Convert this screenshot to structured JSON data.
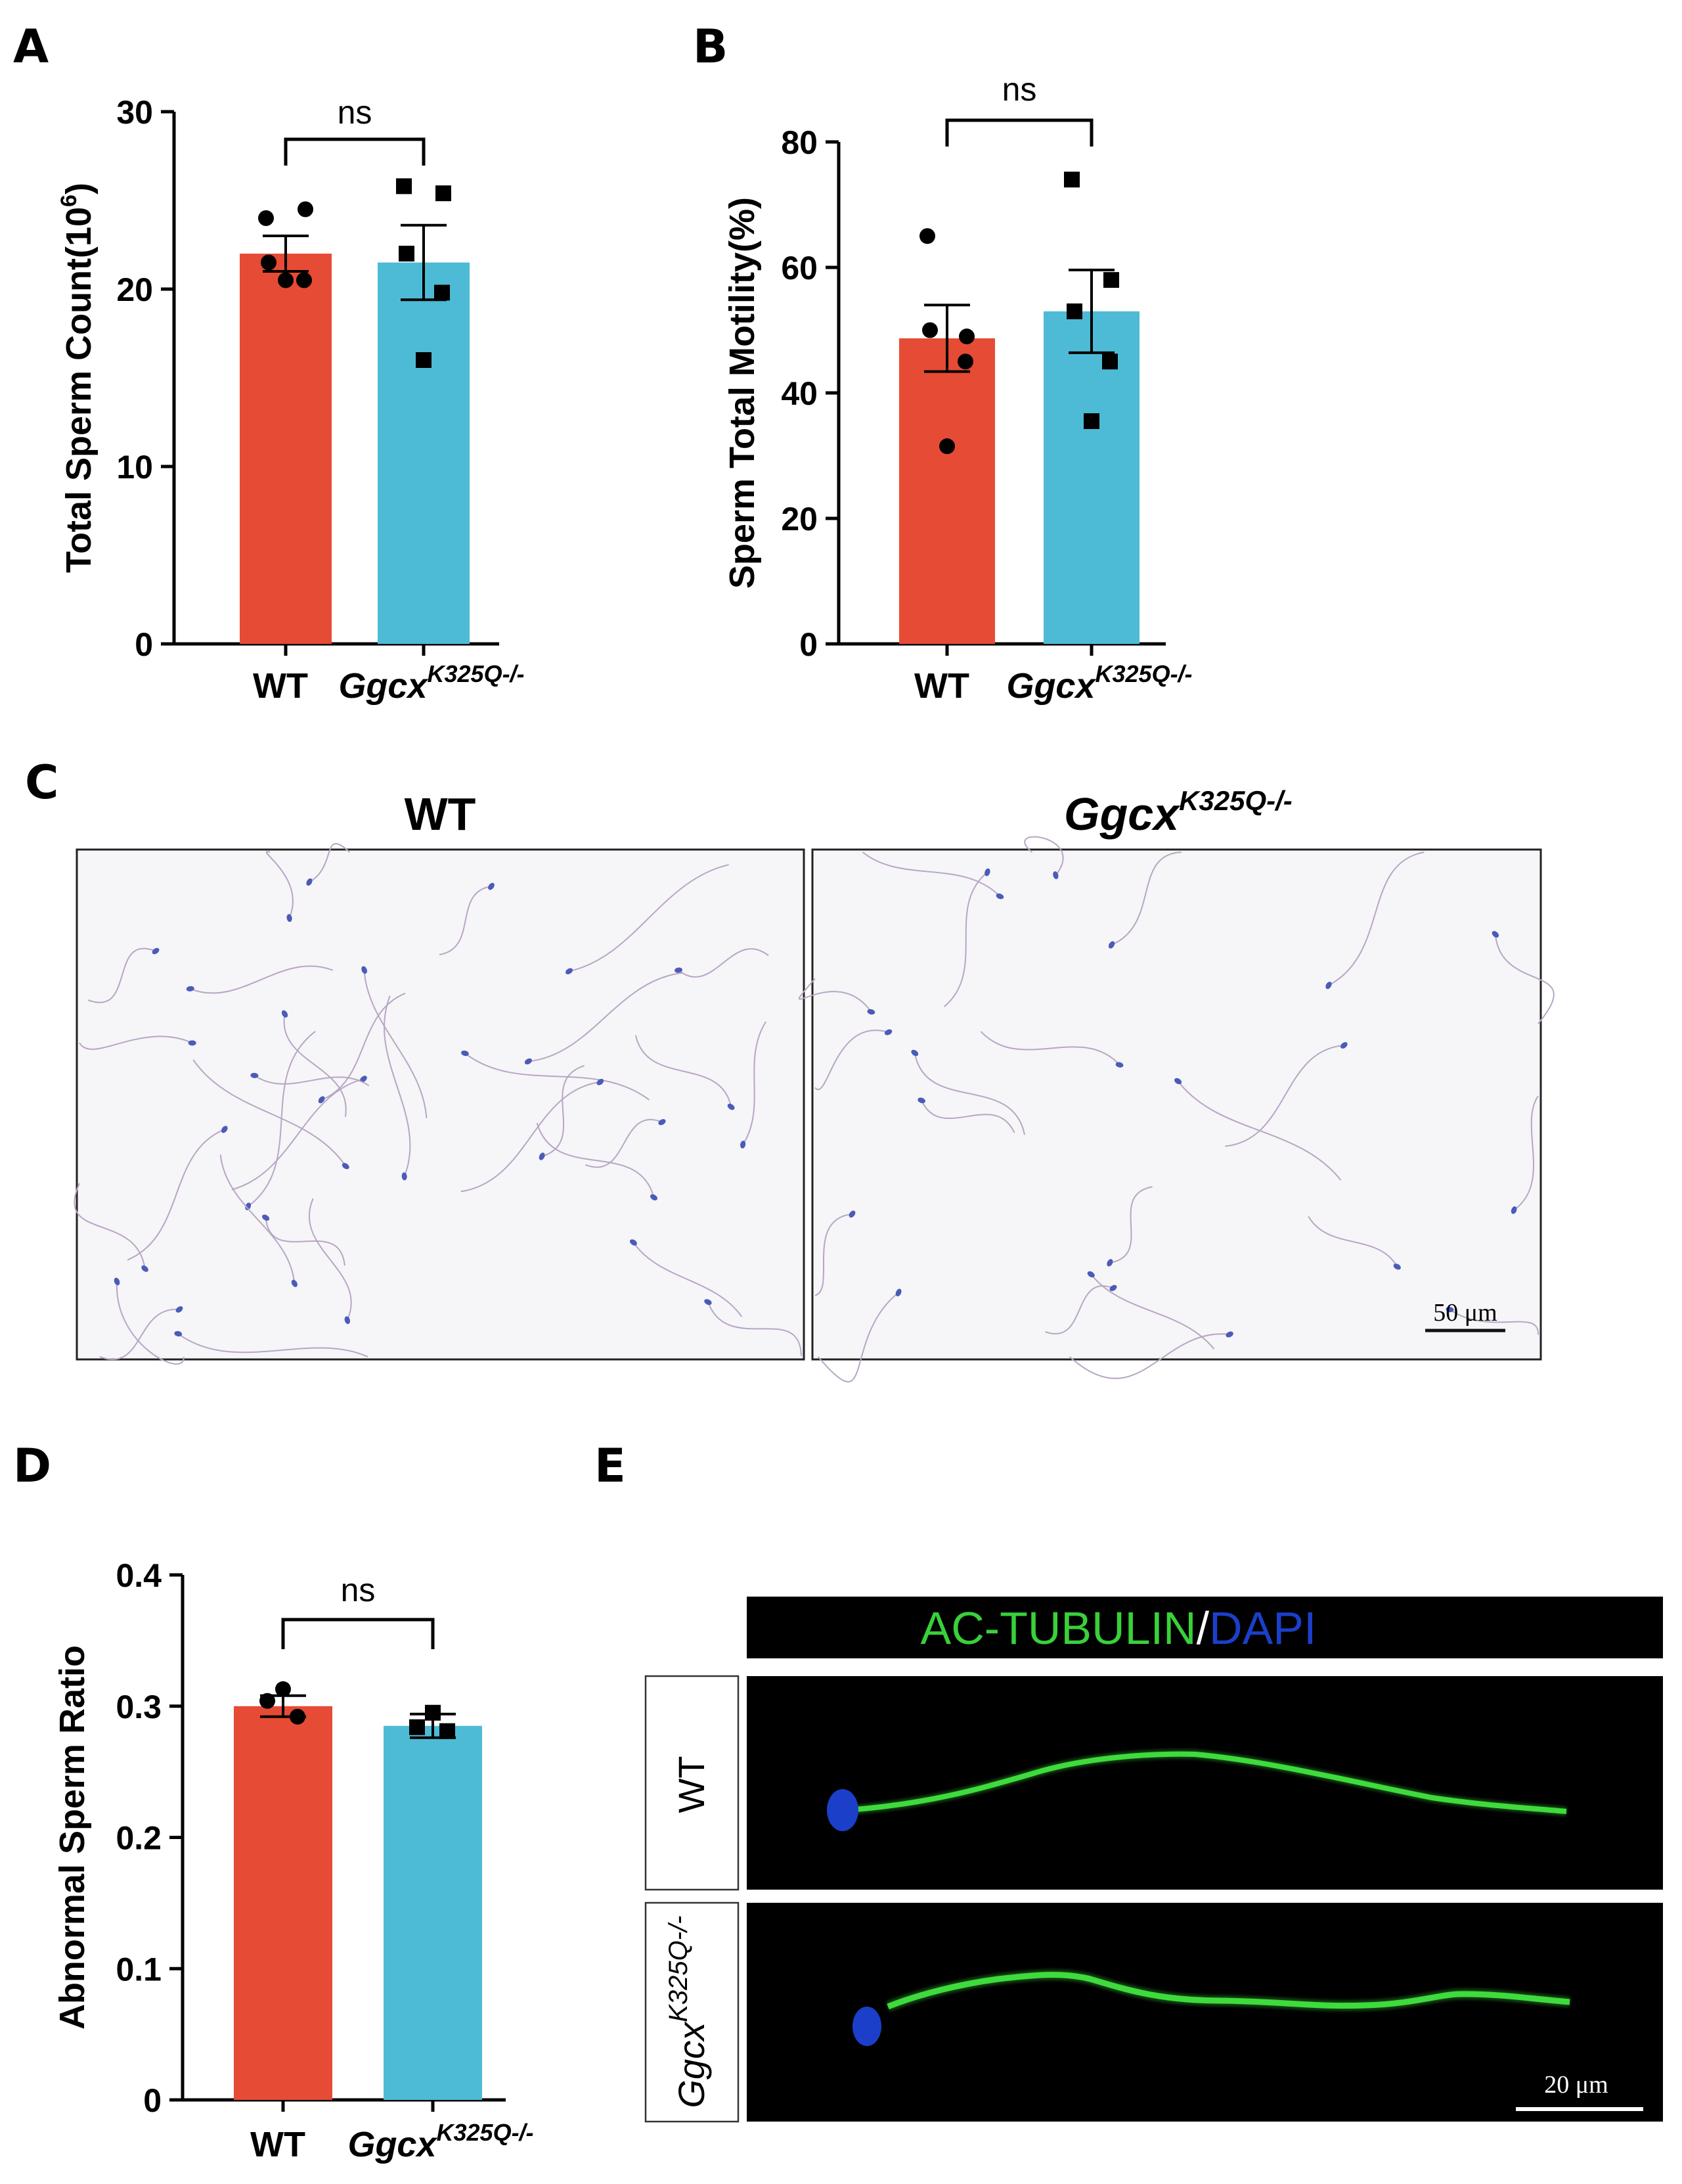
{
  "panel_letters": [
    "A",
    "B",
    "C",
    "D",
    "E"
  ],
  "colors": {
    "wt": "#E64B35",
    "mut": "#4DBBD5",
    "green": "#39D03A",
    "blue": "#1B3FC8",
    "micro_bg": "#F6F5F8"
  },
  "chart_data": [
    {
      "type": "bar",
      "panel": "A",
      "categories": [
        "WT",
        "Ggcx"
      ],
      "category_superscripts": [
        "",
        "K325Q-/-"
      ],
      "values": [
        22.0,
        21.5
      ],
      "sem": [
        1.0,
        2.1
      ],
      "points": [
        [
          24.0,
          24.5,
          21.5,
          20.5,
          20.5
        ],
        [
          25.8,
          25.4,
          22.0,
          19.8,
          16.0
        ]
      ],
      "ylabel": "Total Sperm Count(10",
      "ylabel_superscript": "6",
      "ylabel_suffix": ")",
      "ylim": [
        0,
        30
      ],
      "yticks": [
        "0",
        "10",
        "20",
        "30"
      ],
      "ytick_values": [
        0,
        10,
        20,
        30
      ],
      "comparison": "ns",
      "marker": [
        "circle",
        "square"
      ]
    },
    {
      "type": "bar",
      "panel": "B",
      "categories": [
        "WT",
        "Ggcx"
      ],
      "category_superscripts": [
        "",
        "K325Q-/-"
      ],
      "values": [
        48.7,
        53.0
      ],
      "sem": [
        5.3,
        6.6
      ],
      "points": [
        [
          65.0,
          49.0,
          50.0,
          45.0,
          31.5
        ],
        [
          74.0,
          58.0,
          53.0,
          45.0,
          35.5
        ]
      ],
      "ylabel": "Sperm Total Motility(%)",
      "ylim": [
        0,
        80
      ],
      "yticks": [
        "0",
        "20",
        "40",
        "60",
        "80"
      ],
      "ytick_values": [
        0,
        20,
        40,
        60,
        80
      ],
      "comparison": "ns",
      "marker": [
        "circle",
        "square"
      ]
    },
    {
      "type": "bar",
      "panel": "D",
      "categories": [
        "WT",
        "Ggcx"
      ],
      "category_superscripts": [
        "",
        "K325Q-/-"
      ],
      "values": [
        0.3,
        0.285
      ],
      "sem": [
        0.008,
        0.009
      ],
      "points": [
        [
          0.313,
          0.304,
          0.292
        ],
        [
          0.295,
          0.284,
          0.281
        ]
      ],
      "ylabel": "Abnormal Sperm Ratio",
      "ylim": [
        0,
        0.4
      ],
      "yticks": [
        "0",
        "0.1",
        "0.2",
        "0.3",
        "0.4"
      ],
      "ytick_values": [
        0,
        0.1,
        0.2,
        0.3,
        0.4
      ],
      "comparison": "ns",
      "marker": [
        "circle",
        "square"
      ]
    }
  ],
  "panel_c": {
    "titles": [
      "WT",
      "Ggcx"
    ],
    "title_superscripts": [
      "",
      "K325Q-/-"
    ],
    "scale_bar": "50 μm"
  },
  "panel_e": {
    "legend_a": "AC-TUBULIN",
    "legend_sep": "/",
    "legend_b": "DAPI",
    "row_labels": [
      "WT",
      "Ggcx"
    ],
    "row_superscripts": [
      "",
      "K325Q-/-"
    ],
    "scale_bar": "20 μm"
  }
}
